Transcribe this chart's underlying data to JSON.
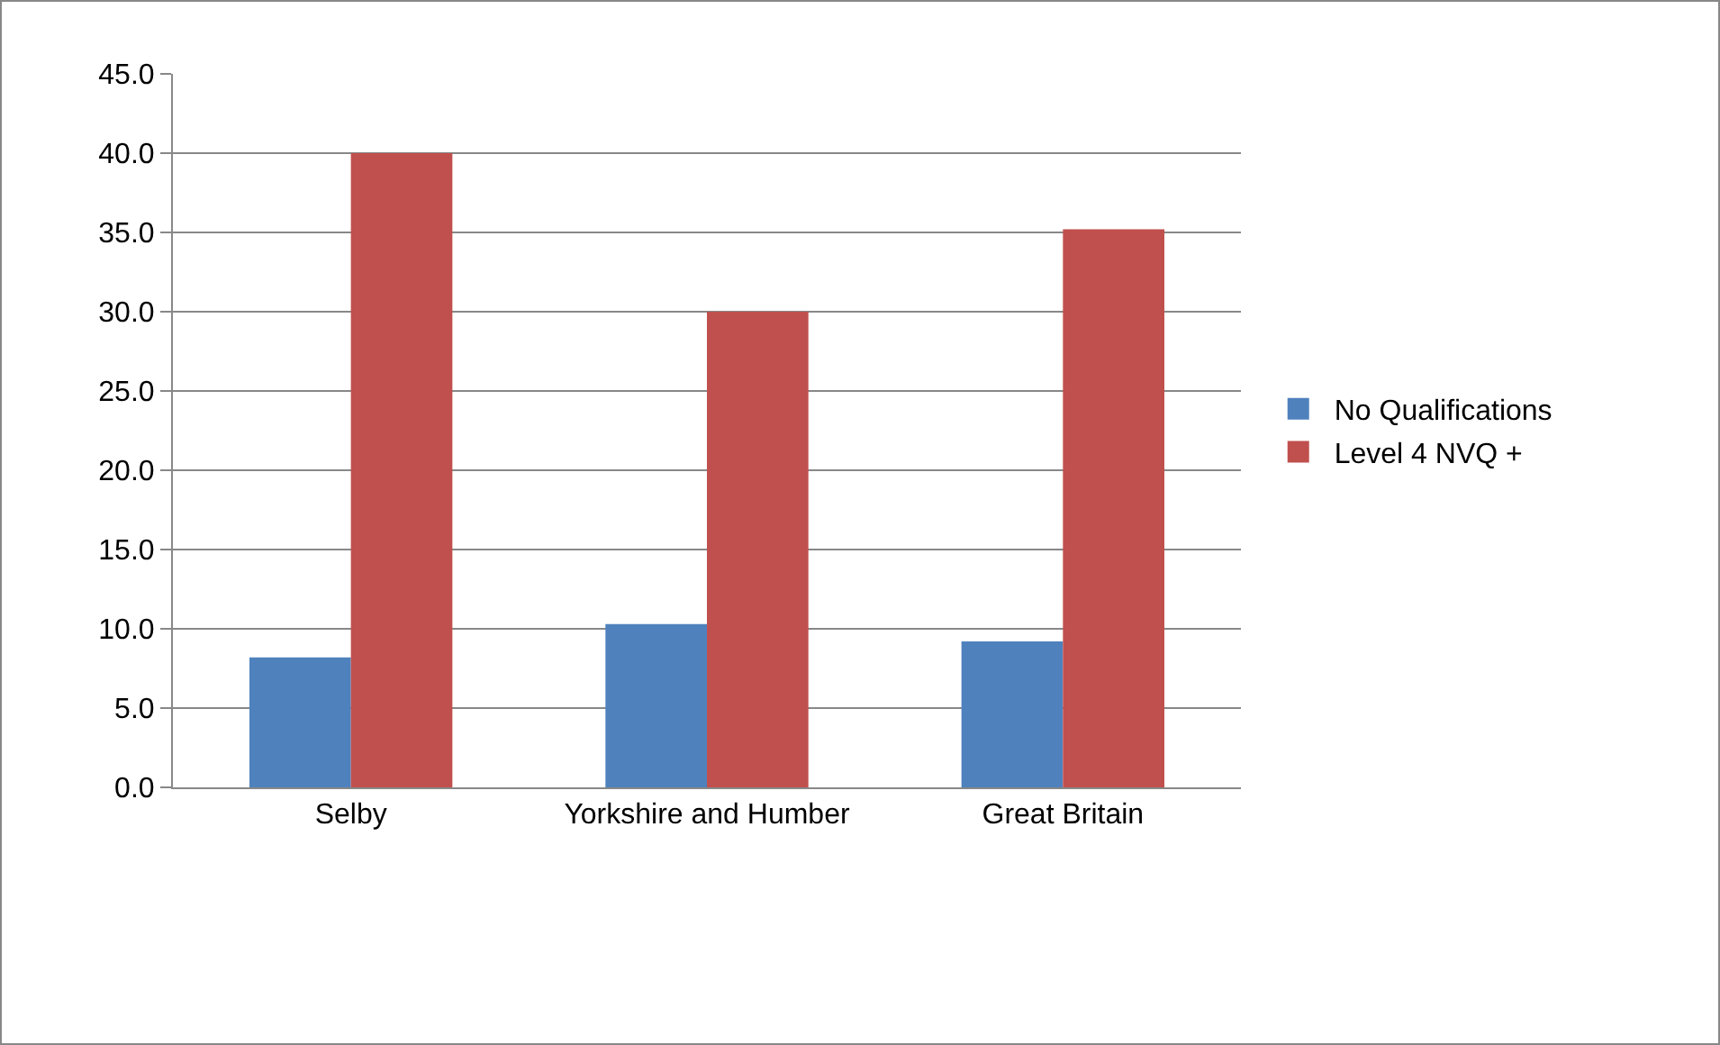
{
  "chart_data": {
    "type": "bar",
    "categories": [
      "Selby",
      "Yorkshire and Humber",
      "Great Britain"
    ],
    "series": [
      {
        "name": "No Qualifications",
        "color": "#4f81bd",
        "values": [
          8.2,
          10.3,
          9.2
        ]
      },
      {
        "name": "Level 4 NVQ +",
        "color": "#c0504d",
        "values": [
          40.0,
          30.0,
          35.2
        ]
      }
    ],
    "ylim": [
      0,
      45
    ],
    "yticks": [
      {
        "value": 0,
        "label": "0.0"
      },
      {
        "value": 5,
        "label": "5.0"
      },
      {
        "value": 10,
        "label": "10.0"
      },
      {
        "value": 15,
        "label": "15.0"
      },
      {
        "value": 20,
        "label": "20.0"
      },
      {
        "value": 25,
        "label": "25.0"
      },
      {
        "value": 30,
        "label": "30.0"
      },
      {
        "value": 35,
        "label": "35.0"
      },
      {
        "value": 40,
        "label": "40.0"
      },
      {
        "value": 45,
        "label": "45.0"
      }
    ],
    "grid": "y",
    "legend": "right"
  }
}
